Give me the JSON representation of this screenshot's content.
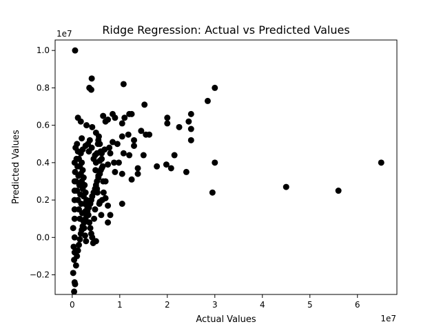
{
  "chart_data": {
    "type": "scatter",
    "title": "Ridge Regression: Actual vs Predicted Values",
    "xlabel": "Actual Values",
    "ylabel": "Predicted Values",
    "x_offset_label": "1e7",
    "y_offset_label": "1e7",
    "x_scale": 10000000,
    "y_scale": 10000000,
    "xlim": [
      -0.36,
      6.83
    ],
    "ylim": [
      -0.305,
      1.056
    ],
    "xticks": [
      0,
      1,
      2,
      3,
      4,
      5,
      6
    ],
    "xtick_labels": [
      "0",
      "1",
      "2",
      "3",
      "4",
      "5",
      "6"
    ],
    "yticks": [
      -0.2,
      0.0,
      0.2,
      0.4,
      0.6,
      0.8,
      1.0
    ],
    "ytick_labels": [
      "−0.2",
      "0.0",
      "0.2",
      "0.4",
      "0.6",
      "0.8",
      "1.0"
    ],
    "grid": false,
    "marker_color": "#000000",
    "series": [
      {
        "points": [
          [
            0.06,
            1.0
          ],
          [
            0.41,
            0.85
          ],
          [
            0.36,
            0.8
          ],
          [
            0.4,
            0.79
          ],
          [
            1.08,
            0.82
          ],
          [
            2.85,
            0.73
          ],
          [
            3.0,
            0.8
          ],
          [
            1.52,
            0.71
          ],
          [
            2.5,
            0.66
          ],
          [
            0.65,
            0.65
          ],
          [
            0.12,
            0.64
          ],
          [
            0.18,
            0.62
          ],
          [
            0.3,
            0.6
          ],
          [
            0.42,
            0.59
          ],
          [
            0.5,
            0.56
          ],
          [
            0.55,
            0.52
          ],
          [
            0.2,
            0.53
          ],
          [
            0.28,
            0.49
          ],
          [
            0.22,
            0.47
          ],
          [
            0.35,
            0.46
          ],
          [
            0.48,
            0.44
          ],
          [
            0.58,
            0.41
          ],
          [
            0.7,
            0.62
          ],
          [
            0.75,
            0.63
          ],
          [
            0.85,
            0.66
          ],
          [
            0.9,
            0.64
          ],
          [
            1.05,
            0.61
          ],
          [
            1.1,
            0.64
          ],
          [
            1.2,
            0.66
          ],
          [
            1.25,
            0.66
          ],
          [
            1.18,
            0.55
          ],
          [
            1.45,
            0.57
          ],
          [
            1.55,
            0.55
          ],
          [
            1.62,
            0.55
          ],
          [
            1.3,
            0.52
          ],
          [
            1.05,
            0.54
          ],
          [
            0.95,
            0.5
          ],
          [
            0.85,
            0.51
          ],
          [
            0.78,
            0.48
          ],
          [
            0.68,
            0.47
          ],
          [
            0.62,
            0.45
          ],
          [
            0.8,
            0.45
          ],
          [
            0.9,
            0.35
          ],
          [
            0.75,
            0.39
          ],
          [
            0.62,
            0.37
          ],
          [
            0.55,
            0.33
          ],
          [
            0.65,
            0.3
          ],
          [
            0.52,
            0.26
          ],
          [
            0.7,
            0.21
          ],
          [
            0.58,
            0.19
          ],
          [
            0.63,
            0.2
          ],
          [
            0.75,
            0.17
          ],
          [
            0.75,
            0.08
          ],
          [
            0.8,
            0.12
          ],
          [
            0.5,
            -0.02
          ],
          [
            0.88,
            0.4
          ],
          [
            0.98,
            0.4
          ],
          [
            1.05,
            0.34
          ],
          [
            1.08,
            0.45
          ],
          [
            1.2,
            0.44
          ],
          [
            1.25,
            0.31
          ],
          [
            1.3,
            0.49
          ],
          [
            1.38,
            0.37
          ],
          [
            1.38,
            0.34
          ],
          [
            1.5,
            0.44
          ],
          [
            1.05,
            0.18
          ],
          [
            1.78,
            0.38
          ],
          [
            1.98,
            0.39
          ],
          [
            2.08,
            0.37
          ],
          [
            2.15,
            0.44
          ],
          [
            2.0,
            0.61
          ],
          [
            2.25,
            0.59
          ],
          [
            2.0,
            0.64
          ],
          [
            2.45,
            0.62
          ],
          [
            2.5,
            0.58
          ],
          [
            2.5,
            0.52
          ],
          [
            2.4,
            0.35
          ],
          [
            2.95,
            0.24
          ],
          [
            3.0,
            0.4
          ],
          [
            4.5,
            0.27
          ],
          [
            5.6,
            0.25
          ],
          [
            6.5,
            0.4
          ],
          [
            0.02,
            0.05
          ],
          [
            0.03,
            -0.05
          ],
          [
            0.04,
            -0.12
          ],
          [
            0.02,
            -0.19
          ],
          [
            0.05,
            -0.24
          ],
          [
            0.06,
            -0.25
          ],
          [
            0.04,
            -0.29
          ],
          [
            0.08,
            -0.15
          ],
          [
            0.1,
            -0.1
          ],
          [
            0.12,
            -0.07
          ],
          [
            0.14,
            -0.04
          ],
          [
            0.16,
            -0.01
          ],
          [
            0.18,
            0.02
          ],
          [
            0.2,
            0.04
          ],
          [
            0.22,
            0.06
          ],
          [
            0.25,
            0.08
          ],
          [
            0.28,
            0.1
          ],
          [
            0.3,
            0.12
          ],
          [
            0.32,
            0.14
          ],
          [
            0.35,
            0.16
          ],
          [
            0.38,
            0.18
          ],
          [
            0.4,
            0.2
          ],
          [
            0.42,
            0.22
          ],
          [
            0.45,
            0.24
          ],
          [
            0.48,
            0.26
          ],
          [
            0.5,
            0.28
          ],
          [
            0.52,
            0.3
          ],
          [
            0.55,
            0.32
          ],
          [
            0.58,
            0.34
          ],
          [
            0.6,
            0.36
          ],
          [
            0.06,
            0.35
          ],
          [
            0.08,
            0.3
          ],
          [
            0.1,
            0.25
          ],
          [
            0.12,
            0.2
          ],
          [
            0.14,
            0.15
          ],
          [
            0.16,
            0.1
          ],
          [
            0.18,
            0.45
          ],
          [
            0.2,
            0.4
          ],
          [
            0.22,
            0.36
          ],
          [
            0.24,
            0.32
          ],
          [
            0.26,
            0.28
          ],
          [
            0.28,
            0.24
          ],
          [
            0.3,
            0.2
          ],
          [
            0.32,
            0.16
          ],
          [
            0.34,
            0.12
          ],
          [
            0.36,
            0.08
          ],
          [
            0.38,
            0.05
          ],
          [
            0.4,
            0.02
          ],
          [
            0.42,
            0.0
          ],
          [
            0.44,
            -0.03
          ],
          [
            0.46,
            0.1
          ],
          [
            0.48,
            0.15
          ],
          [
            0.5,
            0.4
          ],
          [
            0.52,
            0.45
          ],
          [
            0.54,
            0.5
          ],
          [
            0.56,
            0.54
          ],
          [
            0.58,
            0.5
          ],
          [
            0.6,
            0.46
          ],
          [
            0.62,
            0.42
          ],
          [
            0.64,
            0.38
          ],
          [
            0.1,
            0.5
          ],
          [
            0.12,
            0.46
          ],
          [
            0.14,
            0.42
          ],
          [
            0.16,
            0.38
          ],
          [
            0.18,
            0.34
          ],
          [
            0.2,
            0.3
          ],
          [
            0.22,
            0.26
          ],
          [
            0.24,
            0.22
          ],
          [
            0.26,
            0.18
          ],
          [
            0.28,
            0.14
          ],
          [
            0.05,
            0.15
          ],
          [
            0.05,
            0.2
          ],
          [
            0.05,
            0.25
          ],
          [
            0.05,
            0.3
          ],
          [
            0.05,
            0.4
          ],
          [
            0.05,
            0.1
          ],
          [
            0.05,
            0.0
          ],
          [
            0.05,
            -0.08
          ],
          [
            0.07,
            0.48
          ],
          [
            0.09,
            0.42
          ],
          [
            0.11,
            0.38
          ],
          [
            0.13,
            0.33
          ],
          [
            0.15,
            0.28
          ],
          [
            0.17,
            0.23
          ],
          [
            0.19,
            0.18
          ],
          [
            0.21,
            0.13
          ],
          [
            0.23,
            0.09
          ],
          [
            0.25,
            0.05
          ],
          [
            0.27,
            0.01
          ],
          [
            0.29,
            -0.02
          ],
          [
            0.33,
            0.5
          ],
          [
            0.37,
            0.52
          ],
          [
            0.41,
            0.48
          ],
          [
            0.45,
            0.42
          ],
          [
            0.49,
            0.36
          ],
          [
            0.53,
            0.24
          ],
          [
            0.57,
            0.18
          ],
          [
            0.61,
            0.12
          ],
          [
            0.66,
            0.24
          ],
          [
            0.7,
            0.3
          ]
        ]
      }
    ]
  }
}
